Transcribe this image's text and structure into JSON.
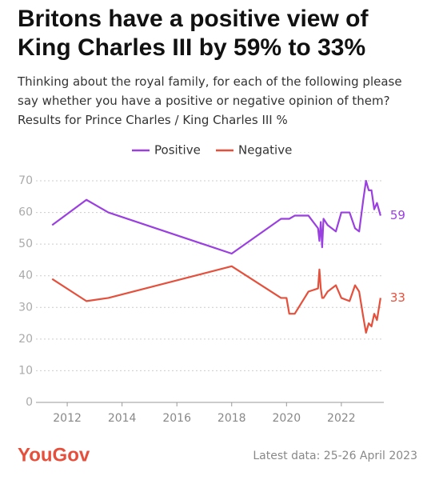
{
  "chart_data": {
    "type": "line",
    "title": "Britons have a positive view of King Charles III by 59% to 33%",
    "subtitle": "Thinking about the royal family, for each of the following please say whether you have a positive or negative opinion of them? Results for Prince Charles / King Charles III %",
    "x": [
      2011.45,
      2012.7,
      2013.5,
      2018.0,
      2019.8,
      2020.0,
      2020.1,
      2020.3,
      2020.8,
      2021.15,
      2021.2,
      2021.25,
      2021.3,
      2021.35,
      2021.5,
      2021.8,
      2022.0,
      2022.3,
      2022.5,
      2022.65,
      2022.8,
      2022.9,
      2023.0,
      2023.1,
      2023.2,
      2023.3,
      2023.43
    ],
    "series": [
      {
        "name": "Positive",
        "color": "#9a3fe0",
        "values": [
          56,
          64,
          60,
          47,
          58,
          58,
          58,
          59,
          59,
          55,
          51,
          57,
          49,
          58,
          56,
          54,
          60,
          60,
          55,
          54,
          64,
          70,
          67,
          67,
          61,
          63,
          59
        ]
      },
      {
        "name": "Negative",
        "color": "#e5503c",
        "values": [
          39,
          32,
          33,
          43,
          33,
          33,
          28,
          28,
          35,
          36,
          42,
          36,
          33,
          33,
          35,
          37,
          33,
          32,
          37,
          35,
          27,
          22,
          25,
          24,
          28,
          26,
          33
        ]
      }
    ],
    "xlim": [
      2010.86,
      2023.55
    ],
    "xticks": [
      2012,
      2014,
      2016,
      2018,
      2020,
      2022
    ],
    "ylim": [
      0,
      70
    ],
    "yticks": [
      0,
      10,
      20,
      30,
      40,
      50,
      60,
      70
    ],
    "grid": true,
    "legend": "top",
    "source": "YouGov",
    "note": "Latest data: 25-26 April 2023"
  }
}
